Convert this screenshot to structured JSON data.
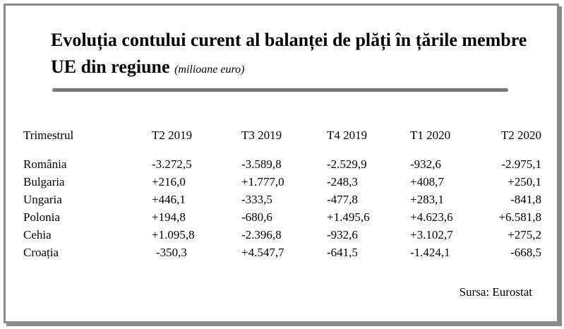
{
  "title": {
    "main": "Evoluția contului curent al balanței de plăți în țările membre UE din regiune",
    "unit": "(milioane euro)"
  },
  "table": {
    "headers": [
      "Trimestrul",
      "T2 2019",
      "T3 2019",
      "T4 2019",
      "T1 2020",
      "T2 2020"
    ],
    "rows": [
      [
        "România",
        "-3.272,5",
        "-3.589,8",
        "-2.529,9",
        "-932,6",
        "-2.975,1"
      ],
      [
        "Bulgaria",
        "+216,0",
        "+1.777,0",
        "-248,3",
        "+408,7",
        "+250,1"
      ],
      [
        "Ungaria",
        "+446,1",
        "-333,5",
        "-477,8",
        "+283,1",
        "-841,8"
      ],
      [
        "Polonia",
        "+194,8",
        "-680,6",
        "+1.495,6",
        "+4.623,6",
        "+6.581,8"
      ],
      [
        "Cehia",
        "+1.095,8",
        "-2.396,8",
        "-932,6",
        "+3.102,7",
        "+275,2"
      ],
      [
        "Croația",
        "-350,3",
        "+4.547,7",
        "-641,5",
        "-1.424,1",
        "-668,5"
      ]
    ]
  },
  "source": "Sursa: Eurostat",
  "colors": {
    "border": "#8a8a8a",
    "rule": "#777777",
    "text": "#000000"
  }
}
